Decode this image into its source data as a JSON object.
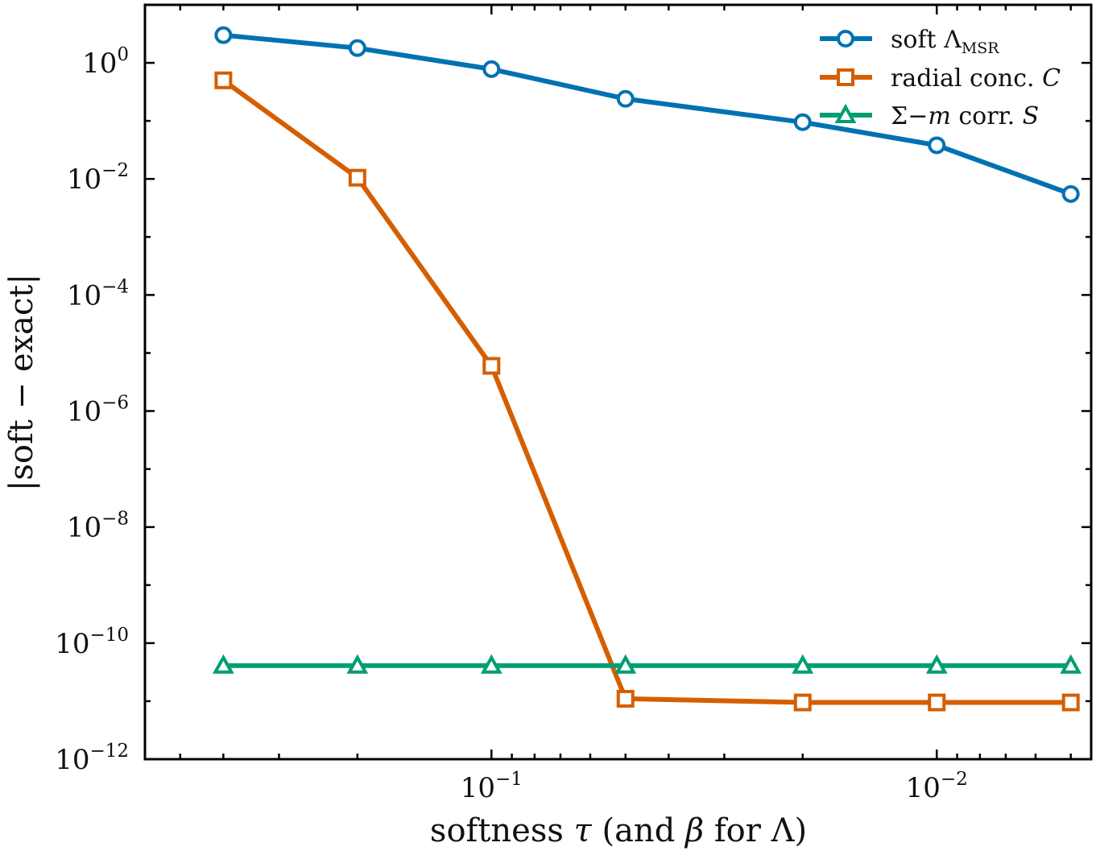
{
  "chart_data": {
    "type": "line",
    "xscale": "log",
    "yscale": "log",
    "x_reversed": true,
    "xlim": [
      0.6,
      0.0045
    ],
    "ylim": [
      1e-12,
      10
    ],
    "xticks": [
      {
        "value": 0.1,
        "base": "10",
        "exp": "−1"
      },
      {
        "value": 0.01,
        "base": "10",
        "exp": "−2"
      }
    ],
    "yticks": [
      {
        "value": 1,
        "base": "10",
        "exp": "0"
      },
      {
        "value": 0.01,
        "base": "10",
        "exp": "−2"
      },
      {
        "value": 0.0001,
        "base": "10",
        "exp": "−4"
      },
      {
        "value": 1e-06,
        "base": "10",
        "exp": "−6"
      },
      {
        "value": 1e-08,
        "base": "10",
        "exp": "−8"
      },
      {
        "value": 1e-10,
        "base": "10",
        "exp": "−10"
      },
      {
        "value": 1e-12,
        "base": "10",
        "exp": "−12"
      }
    ],
    "xlabel": {
      "pre": "softness ",
      "tau": "τ",
      "mid": " (and ",
      "beta": "β",
      "post": " for Λ)"
    },
    "ylabel": "|soft − exact|",
    "grid": false,
    "legend_position": "top-right",
    "x": [
      0.4,
      0.2,
      0.1,
      0.05,
      0.02,
      0.01,
      0.005
    ],
    "series": [
      {
        "name": "soft Λ",
        "name_sub": "MSR",
        "color": "#0072b2",
        "marker": "circle",
        "values": [
          3.0,
          1.8,
          0.78,
          0.24,
          0.095,
          0.038,
          0.0055
        ]
      },
      {
        "name": "radial conc. ",
        "name_italic": "C",
        "color": "#d55e00",
        "marker": "square",
        "values": [
          0.5,
          0.0105,
          6e-06,
          1.1e-11,
          9.5e-12,
          9.5e-12,
          9.5e-12
        ]
      },
      {
        "name": "Σ−",
        "name_italic_mid": "m",
        "name_post": " corr. ",
        "name_italic": "S",
        "color": "#009e73",
        "marker": "triangle",
        "values": [
          4.1e-11,
          4.1e-11,
          4.1e-11,
          4.1e-11,
          4.1e-11,
          4.1e-11,
          4.1e-11
        ]
      }
    ]
  }
}
